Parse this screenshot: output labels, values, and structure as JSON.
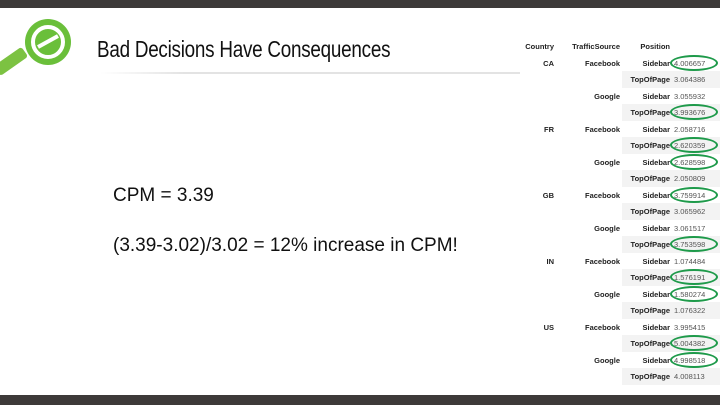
{
  "slide": {
    "title": "Bad Decisions Have Consequences",
    "line1": "CPM = 3.39",
    "line2": "(3.39-3.02)/3.02 = 12% increase in CPM!",
    "accent": "#6abf3a",
    "highlight_color": "#1e9a4a"
  },
  "table": {
    "headers": [
      "Country",
      "TrafficSource",
      "Position",
      ""
    ],
    "rows": [
      {
        "country": "CA",
        "source": "Facebook",
        "position": "Sidebar",
        "value": "4.006657",
        "circled": true
      },
      {
        "country": "",
        "source": "",
        "position": "TopOfPage",
        "value": "3.064386",
        "circled": false
      },
      {
        "country": "",
        "source": "Google",
        "position": "Sidebar",
        "value": "3.055932",
        "circled": false
      },
      {
        "country": "",
        "source": "",
        "position": "TopOfPage",
        "value": "3.993676",
        "circled": true
      },
      {
        "country": "FR",
        "source": "Facebook",
        "position": "Sidebar",
        "value": "2.058716",
        "circled": false
      },
      {
        "country": "",
        "source": "",
        "position": "TopOfPage",
        "value": "2.620359",
        "circled": true
      },
      {
        "country": "",
        "source": "Google",
        "position": "Sidebar",
        "value": "2.628598",
        "circled": true
      },
      {
        "country": "",
        "source": "",
        "position": "TopOfPage",
        "value": "2.050809",
        "circled": false
      },
      {
        "country": "GB",
        "source": "Facebook",
        "position": "Sidebar",
        "value": "3.759914",
        "circled": true
      },
      {
        "country": "",
        "source": "",
        "position": "TopOfPage",
        "value": "3.065962",
        "circled": false
      },
      {
        "country": "",
        "source": "Google",
        "position": "Sidebar",
        "value": "3.061517",
        "circled": false
      },
      {
        "country": "",
        "source": "",
        "position": "TopOfPage",
        "value": "3.753598",
        "circled": true
      },
      {
        "country": "IN",
        "source": "Facebook",
        "position": "Sidebar",
        "value": "1.074484",
        "circled": false
      },
      {
        "country": "",
        "source": "",
        "position": "TopOfPage",
        "value": "1.576191",
        "circled": true
      },
      {
        "country": "",
        "source": "Google",
        "position": "Sidebar",
        "value": "1.580274",
        "circled": true
      },
      {
        "country": "",
        "source": "",
        "position": "TopOfPage",
        "value": "1.076322",
        "circled": false
      },
      {
        "country": "US",
        "source": "Facebook",
        "position": "Sidebar",
        "value": "3.995415",
        "circled": false
      },
      {
        "country": "",
        "source": "",
        "position": "TopOfPage",
        "value": "5.004382",
        "circled": true
      },
      {
        "country": "",
        "source": "Google",
        "position": "Sidebar",
        "value": "4.998518",
        "circled": true
      },
      {
        "country": "",
        "source": "",
        "position": "TopOfPage",
        "value": "4.008113",
        "circled": false
      }
    ]
  }
}
